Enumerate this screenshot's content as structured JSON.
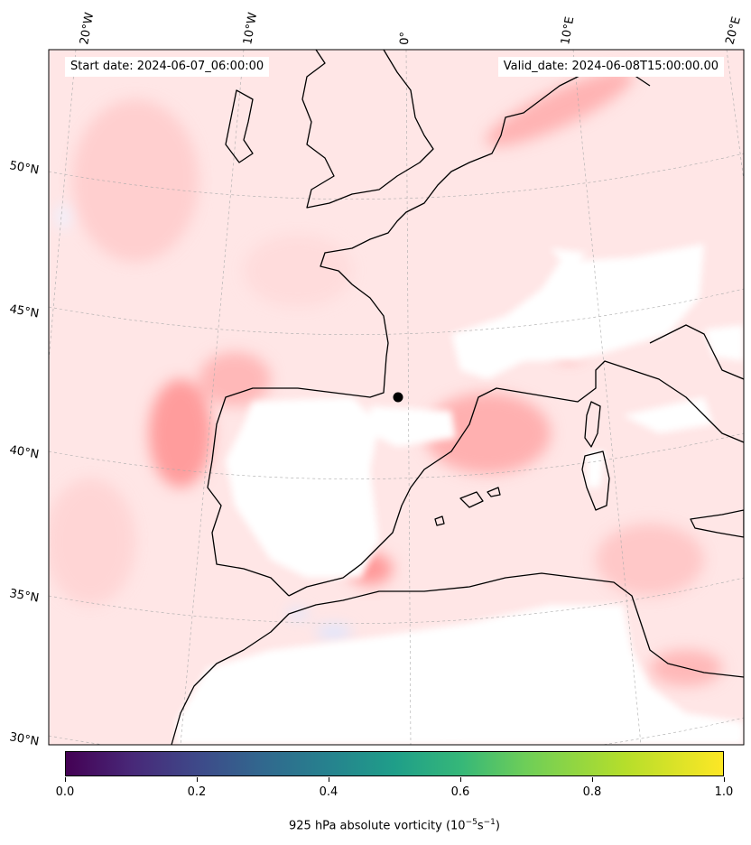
{
  "header": {
    "start_date": "Start date: 2024-06-07_06:00:00",
    "valid_date": "Valid_date: 2024-06-08T15:00:00.00"
  },
  "map": {
    "projection": "conic",
    "lon_labels": [
      "20°W",
      "10°W",
      "0°",
      "10°E",
      "20°E"
    ],
    "lat_labels": [
      "50°N",
      "45°N",
      "40°N",
      "35°N",
      "30°N"
    ],
    "field_colors": {
      "positive": "#ffb3b3",
      "strong_positive": "#ff8080",
      "negative": "#dde6ff",
      "land_contour": "#000000"
    },
    "marker": "black-dot"
  },
  "colorbar": {
    "colormap": "viridis",
    "ticks": [
      "0.0",
      "0.2",
      "0.4",
      "0.6",
      "0.8",
      "1.0"
    ],
    "tick_values": [
      0.0,
      0.2,
      0.4,
      0.6,
      0.8,
      1.0
    ],
    "range": [
      0.0,
      1.0
    ],
    "label_prefix": "925 hPa absolute vorticity (10",
    "label_exp1": "−5",
    "label_mid": "s",
    "label_exp2": "−1",
    "label_suffix": ")"
  }
}
